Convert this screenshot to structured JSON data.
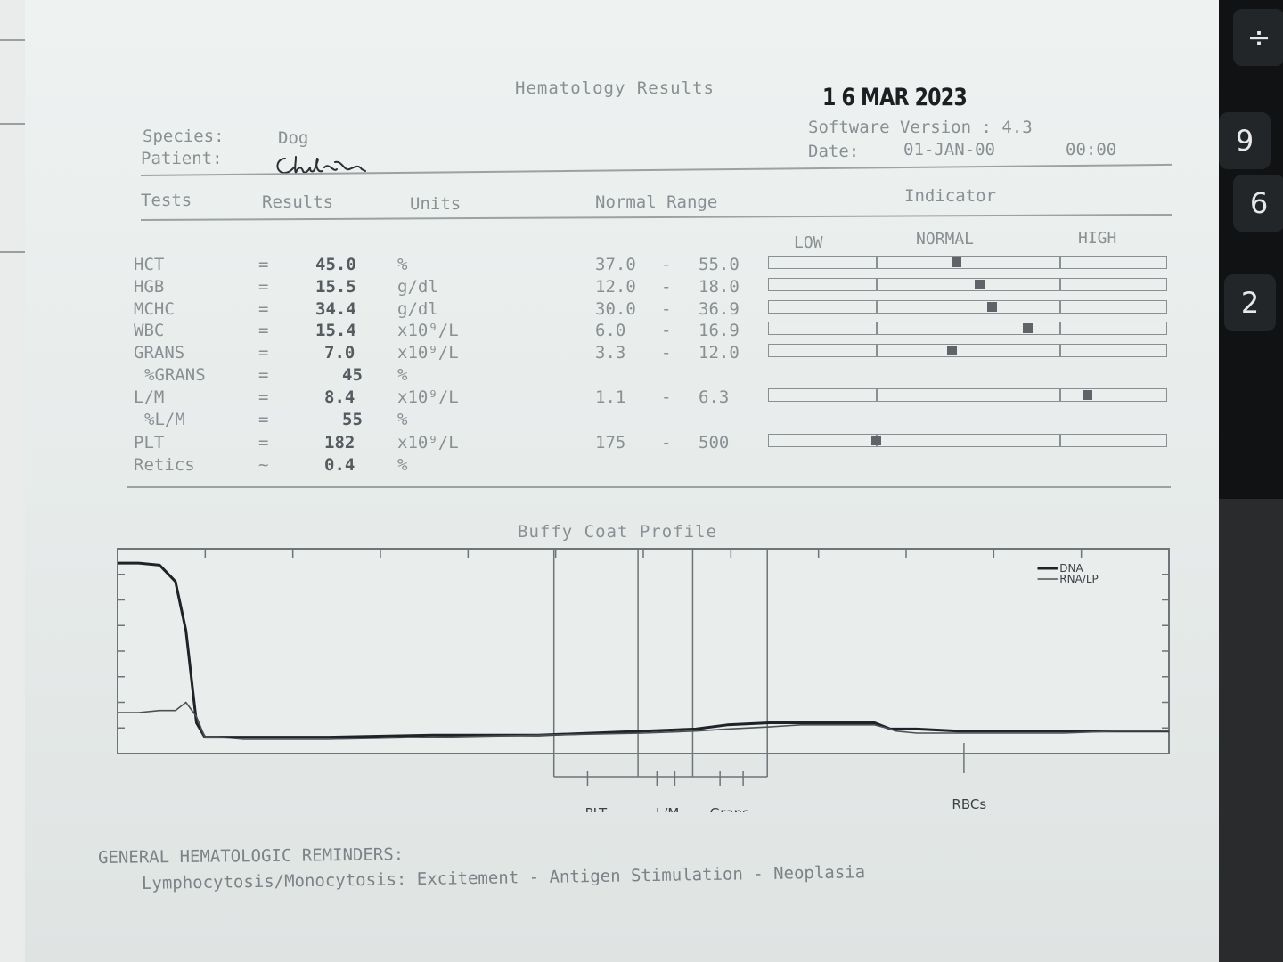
{
  "report": {
    "title": "Hematology Results",
    "stamp_date": "1 6 MAR 2023",
    "species_label": "Species:",
    "species_value": "Dog",
    "patient_label": "Patient:",
    "software_version": "Software Version : 4.3",
    "date_label": "Date:",
    "date_value": "01-JAN-00",
    "time_value": "00:00"
  },
  "table": {
    "headers": {
      "tests": "Tests",
      "results": "Results",
      "units": "Units",
      "range": "Normal Range",
      "indicator": "Indicator"
    },
    "indicator_labels": {
      "low": "LOW",
      "normal": "NORMAL",
      "high": "HIGH"
    },
    "rows": [
      {
        "test": "HCT",
        "op": "=",
        "value": "45.0",
        "unit": "%",
        "range_low": "37.0",
        "range_high": "55.0",
        "marker": 0.47
      },
      {
        "test": "HGB",
        "op": "=",
        "value": "15.5",
        "unit": "g/dl",
        "range_low": "12.0",
        "range_high": "18.0",
        "marker": 0.53
      },
      {
        "test": "MCHC",
        "op": "=",
        "value": "34.4",
        "unit": "g/dl",
        "range_low": "30.0",
        "range_high": "36.9",
        "marker": 0.56
      },
      {
        "test": "WBC",
        "op": "=",
        "value": "15.4",
        "unit": "x10⁹/L",
        "range_low": "6.0",
        "range_high": "16.9",
        "marker": 0.65
      },
      {
        "test": "GRANS",
        "op": "=",
        "value": "7.0",
        "unit": "x10⁹/L",
        "range_low": "3.3",
        "range_high": "12.0",
        "marker": 0.46
      },
      {
        "test": "%GRANS",
        "op": "=",
        "value": "45",
        "unit": "%",
        "range_low": "",
        "range_high": "",
        "marker": null
      },
      {
        "test": "L/M",
        "op": "=",
        "value": "8.4",
        "unit": "x10⁹/L",
        "range_low": "1.1",
        "range_high": "6.3",
        "marker": 0.8
      },
      {
        "test": "%L/M",
        "op": "=",
        "value": "55",
        "unit": "%",
        "range_low": "",
        "range_high": "",
        "marker": null
      },
      {
        "test": "PLT",
        "op": "=",
        "value": "182",
        "unit": "x10⁹/L",
        "range_low": "175",
        "range_high": "500",
        "marker": 0.27
      },
      {
        "test": "Retics",
        "op": "~",
        "value": "0.4",
        "unit": "%",
        "range_low": "",
        "range_high": "",
        "marker": null
      }
    ]
  },
  "chart_data": {
    "type": "line",
    "title": "Buffy Coat Profile",
    "xlabel": "",
    "ylabel": "",
    "x_range": [
      0,
      100
    ],
    "y_range": [
      0,
      100
    ],
    "legend": [
      "DNA",
      "RNA/LP"
    ],
    "legend_position": "top-right",
    "region_labels": [
      "PLT",
      "L/M",
      "Grans",
      "RBCs"
    ],
    "series": [
      {
        "name": "DNA",
        "x": [
          0,
          2,
          4,
          5.5,
          6.5,
          7.5,
          8.3,
          9.5,
          12,
          20,
          30,
          40,
          50,
          55,
          58,
          62,
          65,
          68,
          70,
          72,
          73.5,
          74,
          76,
          80,
          85,
          90,
          95,
          100
        ],
        "y": [
          93,
          93,
          92,
          84,
          60,
          15,
          8,
          8,
          8,
          8,
          9,
          9,
          11,
          12,
          14,
          15,
          15,
          15,
          15,
          15,
          12,
          12,
          12,
          11,
          11,
          11,
          11,
          11
        ]
      },
      {
        "name": "RNA/LP",
        "x": [
          0,
          2,
          4,
          5.5,
          6.5,
          7.5,
          8.3,
          9.5,
          12,
          20,
          30,
          40,
          50,
          55,
          58,
          62,
          65,
          68,
          70,
          72,
          73.5,
          74,
          76,
          80,
          85,
          90,
          95,
          100
        ],
        "y": [
          20,
          20,
          21,
          21,
          25,
          18,
          8,
          8,
          7,
          7,
          8,
          9,
          10,
          11,
          12,
          13,
          14,
          14,
          14,
          14,
          12,
          11,
          10,
          10,
          10,
          10,
          11,
          11
        ]
      }
    ]
  },
  "reminders": {
    "heading": "GENERAL HEMATOLOGIC REMINDERS:",
    "line": "Lymphocytosis/Monocytosis: Excitement - Antigen Stimulation - Neoplasia"
  },
  "keys": [
    "÷",
    "9",
    "6",
    "2"
  ]
}
